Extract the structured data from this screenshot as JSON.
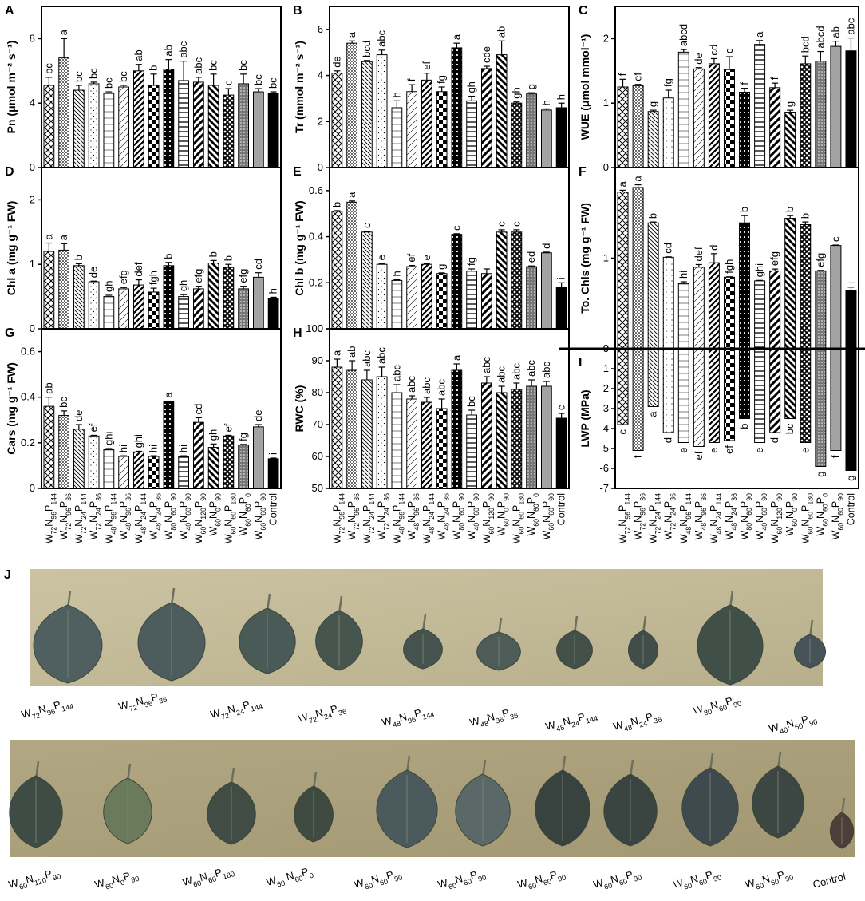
{
  "categories": [
    "W72N96P144",
    "W72N96P36",
    "W72N24P144",
    "W72N24P36",
    "W48N96P144",
    "W48N96P36",
    "W48N24P144",
    "W48N24P36",
    "W80N60P90",
    "W40N60P90",
    "W60N120P90",
    "W60N0P90",
    "W60N60P180",
    "W60N60P0",
    "W60N60P90",
    "Control"
  ],
  "chart_data": [
    {
      "panel": "A",
      "type": "bar",
      "ylabel": "Pn (μmol m⁻² s⁻¹)",
      "ylim": [
        0,
        10
      ],
      "yticks": [
        0,
        4,
        8
      ],
      "values": [
        5.1,
        6.8,
        4.8,
        5.2,
        4.6,
        5.0,
        6.0,
        5.1,
        6.1,
        5.4,
        5.3,
        5.1,
        4.5,
        5.2,
        4.7,
        4.6
      ],
      "errors": [
        0.5,
        1.2,
        0.3,
        0.1,
        0.1,
        0.1,
        0.4,
        0.7,
        0.6,
        1.2,
        0.3,
        0.7,
        0.4,
        0.6,
        0.2,
        0.1
      ],
      "letters": [
        "bc",
        "a",
        "bc",
        "bc",
        "bc",
        "bc",
        "ab",
        "b",
        "ab",
        "abc",
        "abc",
        "bc",
        "c",
        "bc",
        "bc",
        "bc"
      ]
    },
    {
      "panel": "B",
      "type": "bar",
      "ylabel": "Tr (mmol m⁻² s⁻¹)",
      "ylim": [
        0,
        7
      ],
      "yticks": [
        0,
        2,
        4,
        6
      ],
      "values": [
        4.1,
        5.4,
        4.6,
        4.9,
        2.6,
        3.3,
        3.8,
        3.3,
        5.2,
        2.9,
        4.3,
        4.9,
        2.8,
        3.2,
        2.5,
        2.6
      ],
      "errors": [
        0.1,
        0.1,
        0.05,
        0.2,
        0.3,
        0.3,
        0.3,
        0.2,
        0.2,
        0.2,
        0.1,
        0.6,
        0.05,
        0.05,
        0.05,
        0.2
      ],
      "letters": [
        "de",
        "a",
        "bcd",
        "abc",
        "h",
        "f",
        "ef",
        "fg",
        "a",
        "gh",
        "cde",
        "ab",
        "gh",
        "g",
        "h",
        "h"
      ]
    },
    {
      "panel": "C",
      "type": "bar",
      "ylabel": "WUE (μmol mmol⁻¹)",
      "ylim": [
        0,
        2.5
      ],
      "yticks": [
        0,
        1,
        2
      ],
      "values": [
        1.25,
        1.27,
        0.87,
        1.08,
        1.79,
        1.53,
        1.61,
        1.52,
        1.17,
        1.91,
        1.24,
        0.86,
        1.61,
        1.65,
        1.88,
        1.81
      ],
      "errors": [
        0.12,
        0.02,
        0.02,
        0.12,
        0.04,
        0.02,
        0.08,
        0.2,
        0.06,
        0.06,
        0.07,
        0.03,
        0.12,
        0.15,
        0.08,
        0.2
      ],
      "letters": [
        "f",
        "ef",
        "g",
        "fg",
        "abcd",
        "de",
        "cd",
        "c",
        "f",
        "a",
        "f",
        "g",
        "bcd",
        "abcd",
        "ab",
        "abc"
      ]
    },
    {
      "panel": "D",
      "type": "bar",
      "ylabel": "Chl a (mg g⁻¹ FW)",
      "ylim": [
        0,
        2.5
      ],
      "yticks": [
        0,
        1,
        2
      ],
      "values": [
        1.2,
        1.22,
        0.98,
        0.73,
        0.5,
        0.62,
        0.68,
        0.57,
        0.98,
        0.5,
        0.62,
        1.02,
        0.95,
        0.62,
        0.8,
        0.47
      ],
      "errors": [
        0.13,
        0.1,
        0.03,
        0.01,
        0.02,
        0.02,
        0.08,
        0.06,
        0.05,
        0.03,
        0.04,
        0.04,
        0.05,
        0.04,
        0.07,
        0.02
      ],
      "letters": [
        "a",
        "a",
        "b",
        "de",
        "gh",
        "efg",
        "def",
        "fgh",
        "b",
        "gh",
        "efg",
        "b",
        "b",
        "efg",
        "cd",
        "h"
      ]
    },
    {
      "panel": "E",
      "type": "bar",
      "ylabel": "Chl b (mg g⁻¹ FW)",
      "ylim": [
        0,
        0.7
      ],
      "yticks": [
        0,
        0.2,
        0.4,
        0.6
      ],
      "values": [
        0.51,
        0.55,
        0.42,
        0.28,
        0.21,
        0.27,
        0.28,
        0.24,
        0.41,
        0.25,
        0.24,
        0.42,
        0.42,
        0.27,
        0.33,
        0.18
      ],
      "errors": [
        0.003,
        0.005,
        0.003,
        0.003,
        0.003,
        0.005,
        0.003,
        0.003,
        0.003,
        0.01,
        0.02,
        0.01,
        0.01,
        0.003,
        0.003,
        0.02
      ],
      "letters": [
        "b",
        "a",
        "c",
        "e",
        "h",
        "ef",
        "e",
        "g",
        "c",
        "fg",
        "",
        "c",
        "c",
        "ed",
        "d",
        "i"
      ]
    },
    {
      "panel": "F",
      "type": "bar",
      "ylabel": "To. Chls (mg g⁻¹ FW)",
      "ylim": [
        0,
        2
      ],
      "yticks": [
        0,
        1
      ],
      "values": [
        1.73,
        1.78,
        1.39,
        1.01,
        0.72,
        0.9,
        0.95,
        0.79,
        1.39,
        0.75,
        0.86,
        1.44,
        1.37,
        0.86,
        1.14,
        0.64
      ],
      "errors": [
        0.02,
        0.03,
        0.01,
        0.005,
        0.02,
        0.03,
        0.1,
        0.005,
        0.08,
        0.005,
        0.02,
        0.03,
        0.03,
        0.005,
        0.005,
        0.04
      ],
      "letters": [
        "a",
        "a",
        "b",
        "cd",
        "hi",
        "def",
        "d",
        "fgh",
        "b",
        "ghi",
        "efg",
        "b",
        "b",
        "efg",
        "c",
        "i"
      ]
    },
    {
      "panel": "G",
      "type": "bar",
      "ylabel": "Cars (mg g⁻¹ FW)",
      "ylim": [
        0,
        0.7
      ],
      "yticks": [
        0,
        0.2,
        0.4,
        0.6
      ],
      "values": [
        0.36,
        0.32,
        0.26,
        0.23,
        0.17,
        0.14,
        0.16,
        0.14,
        0.38,
        0.14,
        0.29,
        0.18,
        0.23,
        0.19,
        0.27,
        0.13
      ],
      "errors": [
        0.04,
        0.02,
        0.02,
        0.003,
        0.005,
        0.003,
        0.003,
        0.003,
        0.003,
        0.003,
        0.02,
        0.015,
        0.003,
        0.003,
        0.01,
        0.003
      ],
      "letters": [
        "ab",
        "bc",
        "de",
        "ef",
        "ghi",
        "hi",
        "ghi",
        "hi",
        "a",
        "hi",
        "cd",
        "gh",
        "ef",
        "fg",
        "de",
        "i"
      ]
    },
    {
      "panel": "H",
      "type": "bar",
      "ylabel": "RWC (%)",
      "ylim": [
        50,
        100
      ],
      "yticks": [
        50,
        60,
        70,
        80,
        90,
        100
      ],
      "values": [
        88,
        87,
        84,
        85,
        80,
        78,
        77,
        75,
        87,
        73,
        83,
        80,
        81,
        82,
        82,
        72
      ],
      "errors": [
        2.5,
        3,
        3,
        3,
        2.5,
        1,
        1.5,
        3,
        2,
        1.5,
        2,
        2,
        2,
        2,
        1.5,
        1.5
      ],
      "letters": [
        "a",
        "ab",
        "abc",
        "abc",
        "abc",
        "abc",
        "abc",
        "abc",
        "a",
        "bc",
        "abc",
        "abc",
        "abc",
        "abc",
        "abc",
        "c"
      ]
    },
    {
      "panel": "I",
      "type": "bar",
      "ylabel": "LWP (MPa)",
      "ylim": [
        -7,
        0
      ],
      "yticks": [
        0,
        -1,
        -2,
        -3,
        -4,
        -5,
        -6,
        -7
      ],
      "values": [
        -3.8,
        -5.1,
        -2.9,
        -4.2,
        -4.7,
        -4.9,
        -4.7,
        -4.6,
        -3.5,
        -4.7,
        -4.2,
        -3.5,
        -4.7,
        -5.9,
        -5.1,
        -6.1
      ],
      "errors": [
        0,
        0,
        0,
        0,
        0,
        0,
        0,
        0,
        0,
        0,
        0,
        0,
        0,
        0,
        0,
        0
      ],
      "letters": [
        "c",
        "f",
        "a",
        "d",
        "e",
        "ef",
        "e",
        "ef",
        "b",
        "e",
        "d",
        "bc",
        "e",
        "g",
        "f",
        "g"
      ]
    }
  ],
  "photo": {
    "panel_label": "J",
    "row1_labels": [
      "W72N96P144",
      "W72N96P36",
      "W72N24P144",
      "W72N24P36",
      "W48N96P144",
      "W48N96P36",
      "W48N24P144",
      "W48N24P36",
      "W80N60P90",
      "W40N60P90"
    ],
    "row2_labels": [
      "W60N120P90",
      "W60N0P90",
      "W60N60P180",
      "W60 N60P0",
      "W60N60P90",
      "W60N60P90",
      "W60N60P90",
      "W60N60P90",
      "W60N60P90",
      "W60N60P90",
      "Control"
    ]
  }
}
